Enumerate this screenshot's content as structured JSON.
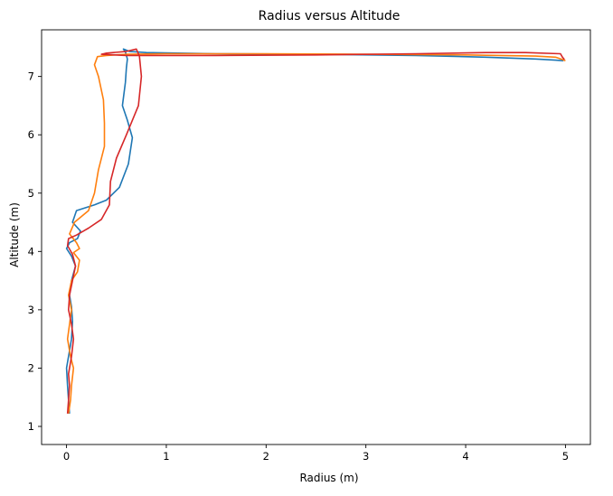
{
  "chart_data": {
    "type": "line",
    "title": "Radius versus Altitude",
    "xlabel": "Radius (m)",
    "ylabel": "Altitude (m)",
    "xlim": [
      -0.25,
      5.25
    ],
    "ylim": [
      0.69,
      7.8
    ],
    "xticks": [
      0,
      1,
      2,
      3,
      4,
      5
    ],
    "yticks": [
      1,
      2,
      3,
      4,
      5,
      6,
      7
    ],
    "grid": false,
    "legend": "none",
    "series": [
      {
        "color": "#1f77b4",
        "points": [
          [
            0.03,
            1.22
          ],
          [
            0.02,
            1.45
          ],
          [
            0.01,
            1.7
          ],
          [
            0.0,
            2.0
          ],
          [
            0.02,
            2.2
          ],
          [
            0.05,
            2.5
          ],
          [
            0.06,
            2.8
          ],
          [
            0.05,
            3.05
          ],
          [
            0.03,
            3.25
          ],
          [
            0.05,
            3.5
          ],
          [
            0.09,
            3.75
          ],
          [
            0.05,
            3.92
          ],
          [
            0.0,
            4.05
          ],
          [
            0.03,
            4.15
          ],
          [
            0.11,
            4.22
          ],
          [
            0.14,
            4.35
          ],
          [
            0.06,
            4.5
          ],
          [
            0.1,
            4.7
          ],
          [
            0.28,
            4.8
          ],
          [
            0.4,
            4.88
          ],
          [
            0.53,
            5.1
          ],
          [
            0.62,
            5.5
          ],
          [
            0.66,
            5.95
          ],
          [
            0.61,
            6.25
          ],
          [
            0.56,
            6.5
          ],
          [
            0.59,
            6.9
          ],
          [
            0.6,
            7.15
          ],
          [
            0.61,
            7.3
          ],
          [
            0.59,
            7.42
          ],
          [
            0.57,
            7.47
          ],
          [
            0.63,
            7.43
          ],
          [
            0.8,
            7.41
          ],
          [
            1.5,
            7.39
          ],
          [
            2.5,
            7.38
          ],
          [
            3.5,
            7.36
          ],
          [
            4.2,
            7.33
          ],
          [
            4.7,
            7.3
          ],
          [
            4.9,
            7.28
          ],
          [
            4.98,
            7.27
          ]
        ]
      },
      {
        "color": "#ff7f0e",
        "points": [
          [
            0.02,
            1.22
          ],
          [
            0.04,
            1.45
          ],
          [
            0.05,
            1.7
          ],
          [
            0.07,
            2.0
          ],
          [
            0.04,
            2.2
          ],
          [
            0.01,
            2.5
          ],
          [
            0.03,
            2.75
          ],
          [
            0.05,
            3.0
          ],
          [
            0.02,
            3.25
          ],
          [
            0.05,
            3.5
          ],
          [
            0.11,
            3.65
          ],
          [
            0.13,
            3.85
          ],
          [
            0.07,
            3.98
          ],
          [
            0.13,
            4.05
          ],
          [
            0.1,
            4.15
          ],
          [
            0.03,
            4.3
          ],
          [
            0.08,
            4.5
          ],
          [
            0.22,
            4.7
          ],
          [
            0.28,
            5.0
          ],
          [
            0.32,
            5.4
          ],
          [
            0.38,
            5.8
          ],
          [
            0.38,
            6.2
          ],
          [
            0.37,
            6.6
          ],
          [
            0.32,
            7.0
          ],
          [
            0.28,
            7.2
          ],
          [
            0.31,
            7.34
          ],
          [
            0.4,
            7.36
          ],
          [
            0.6,
            7.38
          ],
          [
            1.0,
            7.39
          ],
          [
            2.0,
            7.39
          ],
          [
            3.0,
            7.38
          ],
          [
            4.0,
            7.37
          ],
          [
            4.7,
            7.35
          ],
          [
            4.9,
            7.33
          ],
          [
            4.97,
            7.29
          ],
          [
            5.0,
            7.27
          ]
        ]
      },
      {
        "color": "#d62728",
        "points": [
          [
            0.01,
            1.22
          ],
          [
            0.02,
            1.45
          ],
          [
            0.03,
            1.7
          ],
          [
            0.02,
            1.9
          ],
          [
            0.05,
            2.2
          ],
          [
            0.07,
            2.5
          ],
          [
            0.05,
            2.75
          ],
          [
            0.02,
            3.0
          ],
          [
            0.03,
            3.25
          ],
          [
            0.06,
            3.5
          ],
          [
            0.09,
            3.75
          ],
          [
            0.06,
            3.95
          ],
          [
            0.01,
            4.1
          ],
          [
            0.02,
            4.22
          ],
          [
            0.1,
            4.28
          ],
          [
            0.22,
            4.4
          ],
          [
            0.35,
            4.55
          ],
          [
            0.43,
            4.8
          ],
          [
            0.44,
            5.2
          ],
          [
            0.5,
            5.6
          ],
          [
            0.6,
            6.0
          ],
          [
            0.72,
            6.5
          ],
          [
            0.75,
            7.0
          ],
          [
            0.73,
            7.35
          ],
          [
            0.7,
            7.47
          ],
          [
            0.6,
            7.43
          ],
          [
            0.4,
            7.4
          ],
          [
            0.35,
            7.38
          ],
          [
            0.6,
            7.36
          ],
          [
            1.5,
            7.36
          ],
          [
            2.5,
            7.37
          ],
          [
            3.5,
            7.39
          ],
          [
            4.2,
            7.41
          ],
          [
            4.6,
            7.41
          ],
          [
            4.95,
            7.39
          ],
          [
            4.97,
            7.33
          ],
          [
            4.99,
            7.29
          ]
        ]
      }
    ]
  }
}
